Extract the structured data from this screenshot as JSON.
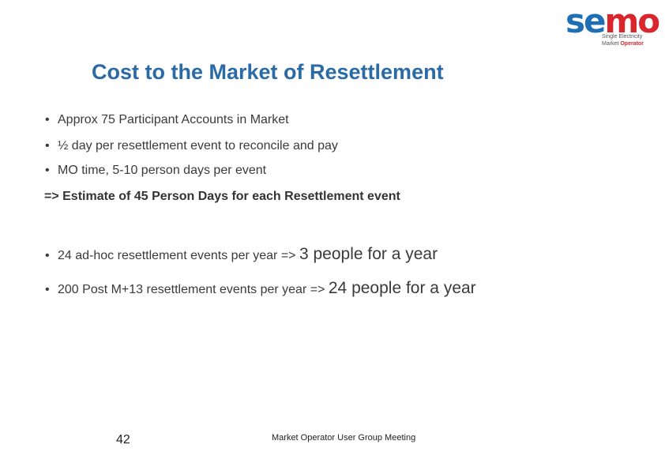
{
  "logo": {
    "word_blue": "se",
    "word_red": "mo",
    "line1": "Single Electricity",
    "line2_a": "Market ",
    "line2_b": "Operator"
  },
  "title": "Cost to the Market of Resettlement",
  "bullets": [
    "Approx 75 Participant Accounts in Market",
    "½ day per resettlement event to reconcile and pay",
    "MO time, 5-10 person days per event"
  ],
  "estimate": "=> Estimate of 45 Person Days for each Resettlement event",
  "bullets2": [
    {
      "prefix": "24 ad-hoc resettlement events per year =>",
      "emphasis": "3 people for a year"
    },
    {
      "prefix": "200 Post M+13 resettlement events per year =>",
      "emphasis": "24 people for a year"
    }
  ],
  "bullet_symbol": "•",
  "footer": {
    "page_number": "42",
    "text": "Market Operator User Group Meeting"
  }
}
